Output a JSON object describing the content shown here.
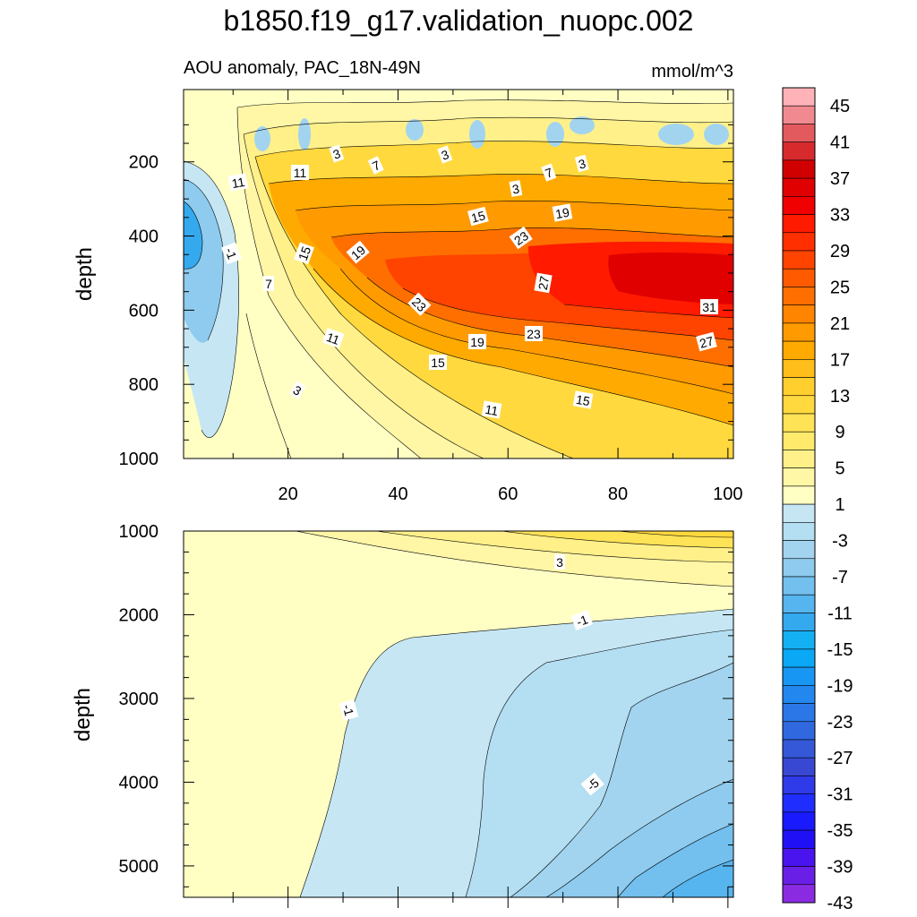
{
  "chart_data": {
    "type": "contour",
    "title": "b1850.f19_g17.validation_nuopc.002",
    "subtitle_left": "AOU anomaly, PAC_18N-49N",
    "subtitle_right": "mmol/m^3",
    "colorbar": {
      "tick_labels": [
        "45",
        "41",
        "37",
        "33",
        "29",
        "25",
        "21",
        "17",
        "13",
        "9",
        "5",
        "1",
        "-3",
        "-7",
        "-11",
        "-15",
        "-19",
        "-23",
        "-27",
        "-31",
        "-35",
        "-39",
        "-43"
      ],
      "colors": [
        "#ffb3b8",
        "#f08a90",
        "#e35a5e",
        "#d62a2d",
        "#d10000",
        "#e00000",
        "#f00000",
        "#ff1a00",
        "#ff2f00",
        "#ff4400",
        "#ff5a00",
        "#ff6f00",
        "#ff8400",
        "#ff9a00",
        "#ffaa00",
        "#ffbe1a",
        "#ffcf2e",
        "#ffd93e",
        "#ffe356",
        "#ffea6c",
        "#fff08a",
        "#fff6a6",
        "#ffffc4",
        "#c6e6f4",
        "#b4def2",
        "#a2d4ef",
        "#8ecbee",
        "#73c0ee",
        "#56b5ee",
        "#35a9ee",
        "#14b0f4",
        "#0aa8f5",
        "#1797f3",
        "#2287ee",
        "#2b77e8",
        "#3068e0",
        "#3458d8",
        "#3848d2",
        "#2f3ae8",
        "#1f2eff",
        "#1a1aff",
        "#2010f5",
        "#4a14ef",
        "#6a1fe6",
        "#8a2be2"
      ]
    },
    "upper_panel": {
      "ylabel": "depth",
      "xlabel": "",
      "x_tick_labels": [
        "20",
        "40",
        "60",
        "80",
        "100"
      ],
      "y_tick_labels": [
        "200",
        "400",
        "600",
        "800",
        "1000"
      ],
      "xlim": [
        1,
        101
      ],
      "ylim": [
        1000,
        5
      ],
      "contour_labels": [
        "3",
        "7",
        "3",
        "7",
        "3",
        "11",
        "3",
        "11",
        "15",
        "19",
        "23",
        "27",
        "-1",
        "15",
        "19",
        "7",
        "11",
        "23",
        "19",
        "23",
        "15",
        "11",
        "15",
        "3",
        "31",
        "27"
      ]
    },
    "lower_panel": {
      "ylabel": "depth",
      "xlabel": "",
      "x_tick_labels": [],
      "y_tick_labels": [
        "1000",
        "2000",
        "3000",
        "4000",
        "5000"
      ],
      "xlim": [
        1,
        101
      ],
      "ylim": [
        5375,
        1000
      ],
      "contour_labels": [
        "3",
        "-1",
        "-1",
        "-5"
      ]
    }
  }
}
